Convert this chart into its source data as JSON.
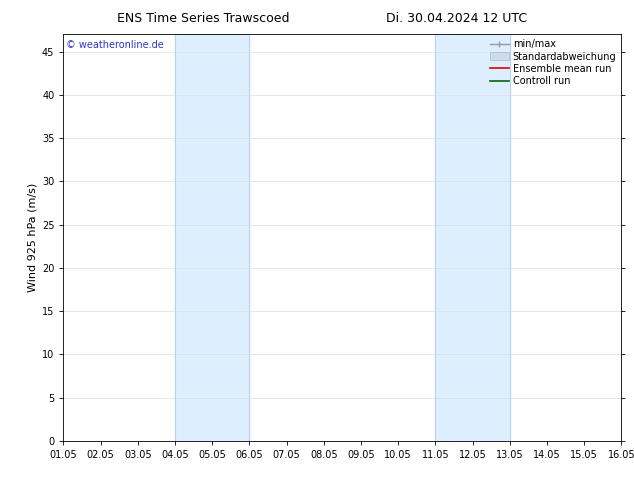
{
  "title_left": "ENS Time Series Trawscoed",
  "title_right": "Di. 30.04.2024 12 UTC",
  "ylabel": "Wind 925 hPa (m/s)",
  "watermark": "© weatheronline.de",
  "xtick_labels": [
    "01.05",
    "02.05",
    "03.05",
    "04.05",
    "05.05",
    "06.05",
    "07.05",
    "08.05",
    "09.05",
    "10.05",
    "11.05",
    "12.05",
    "13.05",
    "14.05",
    "15.05",
    "16.05"
  ],
  "xmin": 0,
  "xmax": 15,
  "ymin": 0,
  "ymax": 47,
  "yticks": [
    0,
    5,
    10,
    15,
    20,
    25,
    30,
    35,
    40,
    45
  ],
  "shaded_bands": [
    {
      "x_start": 3,
      "x_end": 5,
      "color": "#ddeeff"
    },
    {
      "x_start": 10,
      "x_end": 12,
      "color": "#ddeeff"
    }
  ],
  "band_edge_color": "#b8d4ee",
  "legend_entries": [
    {
      "label": "min/max",
      "color": "#aaaaaa",
      "style": "errorbar"
    },
    {
      "label": "Standardabweichung",
      "color": "#ccdde8",
      "style": "bar"
    },
    {
      "label": "Ensemble mean run",
      "color": "#dd0000",
      "style": "line"
    },
    {
      "label": "Controll run",
      "color": "#006600",
      "style": "line"
    }
  ],
  "watermark_color": "#3333cc",
  "background_color": "#ffffff",
  "plot_bg_color": "#ffffff",
  "grid_color": "#dddddd",
  "title_fontsize": 9,
  "axis_label_fontsize": 8,
  "tick_fontsize": 7,
  "legend_fontsize": 7,
  "watermark_fontsize": 7
}
